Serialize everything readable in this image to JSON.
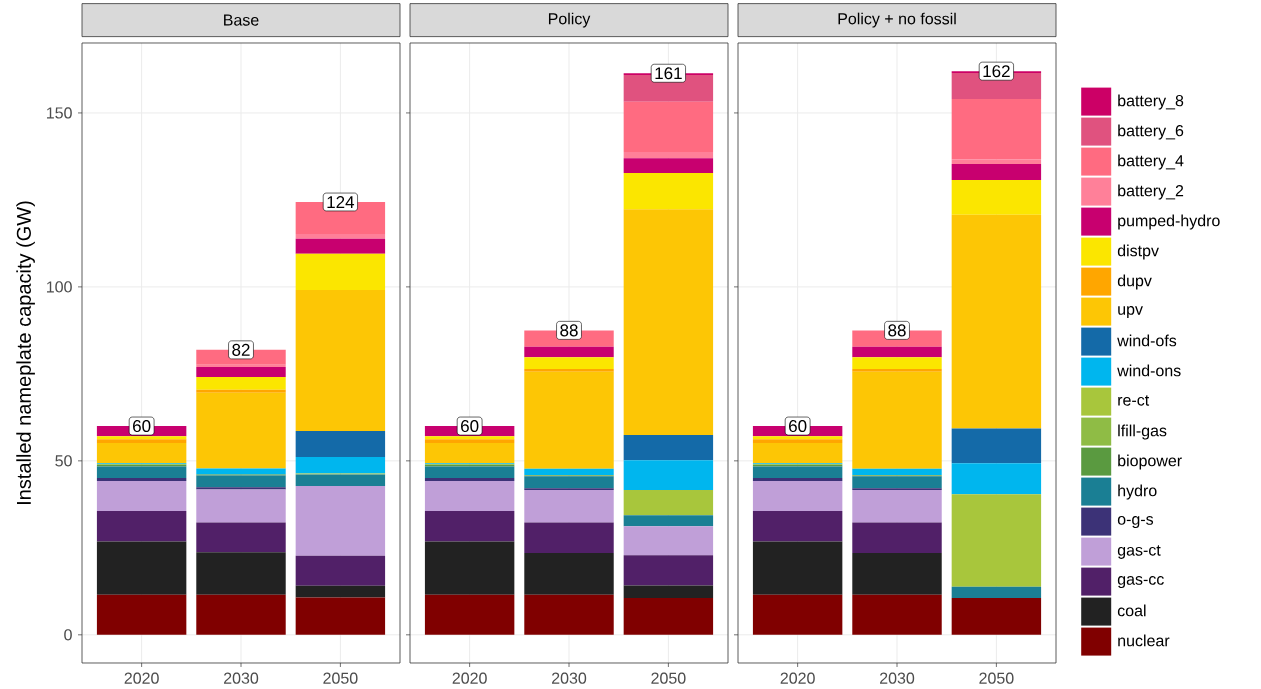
{
  "chart_data": [
    {
      "type": "bar",
      "title": "Base",
      "ylabel": "Installed nameplate capacity (GW)",
      "categories": [
        "2020",
        "2030",
        "2050"
      ],
      "stacked": true,
      "totals": [
        "60",
        "82",
        "124"
      ],
      "ylim": [
        -8.1,
        170.1
      ],
      "yticks": [
        0,
        50,
        100,
        150
      ],
      "grid": true,
      "series": [
        {
          "color": "#800000",
          "values": [
            11.5,
            11.5,
            10.7
          ]
        },
        {
          "color": "#222222",
          "values": [
            15.3,
            12.2,
            3.4
          ]
        },
        {
          "color": "#512068",
          "values": [
            8.8,
            8.6,
            8.6
          ]
        },
        {
          "color": "#c09fd8",
          "values": [
            8.6,
            9.5,
            20.1
          ]
        },
        {
          "color": "#3c3277",
          "values": [
            0.9,
            0.6,
            0
          ]
        },
        {
          "color": "#1a7f94",
          "values": [
            3.3,
            3.4,
            3.3
          ]
        },
        {
          "color": "#5a9a40",
          "values": [
            0.4,
            0.3,
            0
          ]
        },
        {
          "color": "#8fbc45",
          "values": [
            0.2,
            0,
            0
          ]
        },
        {
          "color": "#a8c63c",
          "values": [
            0,
            0,
            0.3
          ]
        },
        {
          "color": "#00b6ee",
          "values": [
            0.3,
            1.7,
            4.7
          ]
        },
        {
          "color": "#146aa8",
          "values": [
            0,
            0,
            7.5
          ]
        },
        {
          "color": "#fdc605",
          "values": [
            5.8,
            21.8,
            40.5
          ]
        },
        {
          "color": "#ffa600",
          "values": [
            1.1,
            0.8,
            0
          ]
        },
        {
          "color": "#fbe600",
          "values": [
            0.9,
            3.7,
            10.4
          ]
        },
        {
          "color": "#c8006f",
          "values": [
            2.9,
            2.9,
            4.3
          ]
        },
        {
          "color": "#ff8099",
          "values": [
            0,
            0.6,
            1.4
          ]
        },
        {
          "color": "#ff6b81",
          "values": [
            0,
            4.3,
            9.2
          ]
        },
        {
          "color": "#e0527f",
          "values": [
            0,
            0,
            0
          ]
        },
        {
          "color": "#cc0066",
          "values": [
            0,
            0,
            0
          ]
        }
      ]
    },
    {
      "type": "bar",
      "title": "Policy",
      "categories": [
        "2020",
        "2030",
        "2050"
      ],
      "stacked": true,
      "totals": [
        "60",
        "88",
        "161"
      ],
      "ylim": [
        -8.1,
        170.1
      ],
      "yticks": [
        0,
        50,
        100,
        150
      ],
      "grid": true,
      "tick_labels": "x",
      "series": [
        {
          "color": "#800000",
          "values": [
            11.5,
            11.5,
            10.6
          ]
        },
        {
          "color": "#222222",
          "values": [
            15.3,
            12.0,
            3.6
          ]
        },
        {
          "color": "#512068",
          "values": [
            8.8,
            8.8,
            8.7
          ]
        },
        {
          "color": "#c09fd8",
          "values": [
            8.6,
            9.3,
            8.3
          ]
        },
        {
          "color": "#3c3277",
          "values": [
            0.9,
            0.5,
            0
          ]
        },
        {
          "color": "#1a7f94",
          "values": [
            3.3,
            3.5,
            3.2
          ]
        },
        {
          "color": "#5a9a40",
          "values": [
            0.4,
            0.2,
            0
          ]
        },
        {
          "color": "#8fbc45",
          "values": [
            0.2,
            0.1,
            0
          ]
        },
        {
          "color": "#a8c63c",
          "values": [
            0,
            0,
            7.2
          ]
        },
        {
          "color": "#00b6ee",
          "values": [
            0.3,
            1.8,
            8.6
          ]
        },
        {
          "color": "#146aa8",
          "values": [
            0,
            0,
            7.2
          ]
        },
        {
          "color": "#fdc605",
          "values": [
            5.8,
            27.9,
            64.9
          ]
        },
        {
          "color": "#ffa600",
          "values": [
            1.1,
            0.8,
            0
          ]
        },
        {
          "color": "#fbe600",
          "values": [
            0.9,
            3.4,
            10.4
          ]
        },
        {
          "color": "#c8006f",
          "values": [
            2.9,
            3.0,
            4.3
          ]
        },
        {
          "color": "#ff8099",
          "values": [
            0,
            0,
            1.8
          ]
        },
        {
          "color": "#ff6b81",
          "values": [
            0,
            4.7,
            14.4
          ]
        },
        {
          "color": "#e0527f",
          "values": [
            0,
            0,
            7.7
          ]
        },
        {
          "color": "#cc0066",
          "values": [
            0,
            0,
            0.5
          ]
        }
      ]
    },
    {
      "type": "bar",
      "title": "Policy + no fossil",
      "categories": [
        "2020",
        "2030",
        "2050"
      ],
      "stacked": true,
      "totals": [
        "60",
        "88",
        "162"
      ],
      "ylim": [
        -8.1,
        170.1
      ],
      "yticks": [
        0,
        50,
        100,
        150
      ],
      "grid": true,
      "tick_labels": "x",
      "legend": "right",
      "series": [
        {
          "name": "nuclear",
          "color": "#800000",
          "values": [
            11.5,
            11.5,
            10.6
          ]
        },
        {
          "name": "coal",
          "color": "#222222",
          "values": [
            15.3,
            12.0,
            0
          ]
        },
        {
          "name": "gas-cc",
          "color": "#512068",
          "values": [
            8.8,
            8.8,
            0
          ]
        },
        {
          "name": "gas-ct",
          "color": "#c09fd8",
          "values": [
            8.6,
            9.3,
            0
          ]
        },
        {
          "name": "o-g-s",
          "color": "#3c3277",
          "values": [
            0.9,
            0.5,
            0
          ]
        },
        {
          "name": "hydro",
          "color": "#1a7f94",
          "values": [
            3.3,
            3.5,
            3.2
          ]
        },
        {
          "name": "biopower",
          "color": "#5a9a40",
          "values": [
            0.4,
            0.2,
            0
          ]
        },
        {
          "name": "lfill-gas",
          "color": "#8fbc45",
          "values": [
            0.2,
            0.1,
            0
          ]
        },
        {
          "name": "re-ct",
          "color": "#a8c63c",
          "values": [
            0,
            0,
            26.6
          ]
        },
        {
          "name": "wind-ons",
          "color": "#00b6ee",
          "values": [
            0.3,
            1.8,
            8.9
          ]
        },
        {
          "name": "wind-ofs",
          "color": "#146aa8",
          "values": [
            0,
            0,
            10.0
          ]
        },
        {
          "name": "upv",
          "color": "#fdc605",
          "values": [
            5.8,
            27.9,
            61.4
          ]
        },
        {
          "name": "dupv",
          "color": "#ffa600",
          "values": [
            1.1,
            0.8,
            0
          ]
        },
        {
          "name": "distpv",
          "color": "#fbe600",
          "values": [
            0.9,
            3.4,
            10.0
          ]
        },
        {
          "name": "pumped-hydro",
          "color": "#c8006f",
          "values": [
            2.9,
            3.0,
            4.6
          ]
        },
        {
          "name": "battery_2",
          "color": "#ff8099",
          "values": [
            0,
            0,
            1.4
          ]
        },
        {
          "name": "battery_4",
          "color": "#ff6b81",
          "values": [
            0,
            4.7,
            17.3
          ]
        },
        {
          "name": "battery_6",
          "color": "#e0527f",
          "values": [
            0,
            0,
            7.5
          ]
        },
        {
          "name": "battery_8",
          "color": "#cc0066",
          "values": [
            0,
            0,
            0.5
          ]
        }
      ]
    }
  ]
}
